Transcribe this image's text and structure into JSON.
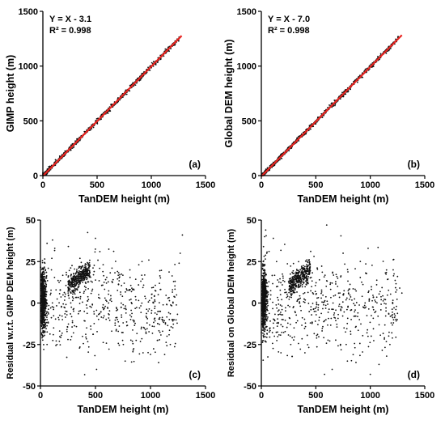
{
  "chart_data": [
    {
      "type": "scatter",
      "panel_label": "(a)",
      "xlabel": "TanDEM height (m)",
      "ylabel": "GIMP height (m)",
      "xlim": [
        0,
        1500
      ],
      "ylim": [
        0,
        1500
      ],
      "xticks": [
        "0",
        "500",
        "1000",
        "1500"
      ],
      "yticks": [
        "0",
        "500",
        "1000",
        "1500"
      ],
      "equation": "Y = X - 3.1",
      "r2": "R² = 0.998",
      "fit_line": {
        "color": "#e8231f",
        "offset": -3.1,
        "x_range": [
          0,
          1280
        ]
      },
      "point_color": "#111111",
      "points": []
    },
    {
      "type": "scatter",
      "panel_label": "(b)",
      "xlabel": "TanDEM height (m)",
      "ylabel": "Global DEM height (m)",
      "xlim": [
        0,
        1500
      ],
      "ylim": [
        0,
        1500
      ],
      "xticks": [
        "0",
        "500",
        "1000",
        "1500"
      ],
      "yticks": [
        "0",
        "500",
        "1000",
        "1500"
      ],
      "equation": "Y = X - 7.0",
      "r2": "R² = 0.998",
      "fit_line": {
        "color": "#e8231f",
        "offset": -7.0,
        "x_range": [
          0,
          1290
        ]
      },
      "point_color": "#111111",
      "points": []
    },
    {
      "type": "scatter",
      "panel_label": "(c)",
      "xlabel": "TanDEM height (m)",
      "ylabel": "Residual w.r.t. GIMP DEM height (m)",
      "xlim": [
        0,
        1500
      ],
      "ylim": [
        -50,
        50
      ],
      "xticks": [
        "0",
        "500",
        "1000",
        "1500"
      ],
      "yticks": [
        "-50",
        "-25",
        "0",
        "25",
        "50"
      ],
      "point_color": "#111111",
      "points": [
        [
          40,
          24
        ],
        [
          60,
          36
        ],
        [
          110,
          38
        ],
        [
          130,
          33
        ],
        [
          500,
          39
        ],
        [
          540,
          31
        ],
        [
          1290,
          41
        ],
        [
          1270,
          30
        ],
        [
          1260,
          24
        ],
        [
          1210,
          13
        ],
        [
          1200,
          8
        ],
        [
          1180,
          -25
        ],
        [
          1150,
          -20
        ],
        [
          1110,
          -17
        ],
        [
          1000,
          -31
        ],
        [
          770,
          -35
        ],
        [
          510,
          -40
        ],
        [
          700,
          19
        ],
        [
          720,
          17
        ],
        [
          650,
          13
        ],
        [
          600,
          12
        ],
        [
          850,
          8
        ],
        [
          900,
          -3
        ],
        [
          960,
          -8
        ],
        [
          1040,
          1
        ],
        [
          1080,
          -5
        ],
        [
          20,
          -20
        ],
        [
          30,
          -28
        ],
        [
          60,
          -25
        ],
        [
          150,
          -25
        ],
        [
          250,
          -22
        ],
        [
          300,
          -18
        ],
        [
          420,
          -15
        ],
        [
          200,
          -10
        ],
        [
          350,
          -5
        ],
        [
          450,
          -2
        ],
        [
          260,
          3
        ],
        [
          180,
          8
        ],
        [
          300,
          10
        ],
        [
          380,
          14
        ],
        [
          400,
          17
        ],
        [
          330,
          15
        ],
        [
          420,
          20
        ],
        [
          360,
          22
        ],
        [
          410,
          18
        ],
        [
          90,
          5
        ],
        [
          40,
          0
        ],
        [
          35,
          10
        ],
        [
          45,
          -5
        ],
        [
          55,
          15
        ],
        [
          70,
          -12
        ],
        [
          100,
          20
        ],
        [
          120,
          -15
        ],
        [
          25,
          20
        ],
        [
          15,
          5
        ]
      ]
    },
    {
      "type": "scatter",
      "panel_label": "(d)",
      "xlabel": "TanDEM height (m)",
      "ylabel": "Residual on Global DEM height (m)",
      "xlim": [
        0,
        1500
      ],
      "ylim": [
        -50,
        50
      ],
      "xticks": [
        "0",
        "500",
        "1000",
        "1500"
      ],
      "yticks": [
        "-50",
        "-25",
        "0",
        "25",
        "50"
      ],
      "point_color": "#111111",
      "points": [
        [
          40,
          44
        ],
        [
          110,
          39
        ],
        [
          600,
          47
        ],
        [
          980,
          33
        ],
        [
          1210,
          20
        ],
        [
          1250,
          16
        ],
        [
          1290,
          6
        ],
        [
          1270,
          9
        ],
        [
          1240,
          -2
        ],
        [
          1180,
          -25
        ],
        [
          1150,
          -32
        ],
        [
          1130,
          -21
        ],
        [
          1000,
          -43
        ],
        [
          790,
          -35
        ],
        [
          650,
          -40
        ],
        [
          580,
          -43
        ],
        [
          1080,
          -37
        ],
        [
          400,
          -30
        ],
        [
          300,
          -15
        ],
        [
          200,
          -10
        ],
        [
          350,
          0
        ],
        [
          150,
          10
        ],
        [
          360,
          20
        ],
        [
          400,
          22
        ],
        [
          420,
          25
        ],
        [
          300,
          18
        ],
        [
          380,
          16
        ],
        [
          200,
          15
        ],
        [
          250,
          13
        ],
        [
          30,
          40
        ],
        [
          20,
          34
        ],
        [
          50,
          30
        ],
        [
          25,
          20
        ],
        [
          35,
          0
        ],
        [
          45,
          -10
        ],
        [
          60,
          10
        ],
        [
          80,
          -15
        ],
        [
          120,
          -20
        ],
        [
          140,
          25
        ],
        [
          700,
          10
        ],
        [
          750,
          5
        ],
        [
          800,
          6
        ],
        [
          850,
          -8
        ],
        [
          900,
          -10
        ],
        [
          950,
          -3
        ],
        [
          1050,
          -5
        ],
        [
          1100,
          2
        ],
        [
          500,
          -5
        ],
        [
          550,
          3
        ],
        [
          650,
          12
        ],
        [
          450,
          -12
        ],
        [
          270,
          -25
        ],
        [
          180,
          -30
        ]
      ]
    }
  ]
}
